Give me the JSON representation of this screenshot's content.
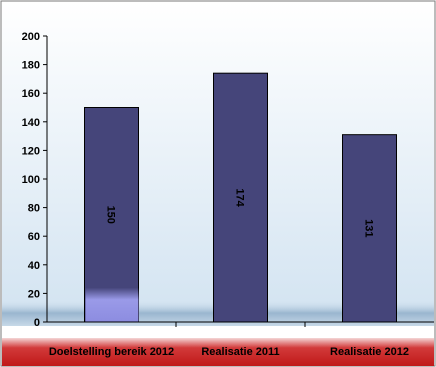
{
  "chart_data": {
    "type": "bar",
    "categories": [
      "Doelstelling bereik 2012",
      "Realisatie 2011",
      "Realisatie 2012"
    ],
    "values": [
      150,
      174,
      131
    ],
    "data_labels": [
      "150",
      "174",
      "131"
    ],
    "ylim": [
      0,
      200
    ],
    "yticks": [
      0,
      20,
      40,
      60,
      80,
      100,
      120,
      140,
      160,
      180,
      200
    ],
    "ytick_labels": [
      "0",
      "20",
      "40",
      "60",
      "80",
      "100",
      "120",
      "140",
      "160",
      "180",
      "200"
    ],
    "grid": false,
    "legend": "none",
    "colors": {
      "bar": "#45457a",
      "bar_highlight": "#9a9ae8",
      "plot_bg_top": "#ffffff",
      "plot_bg_bottom": "#d2e3f1",
      "floor_band": "#a9c3d8",
      "category_band": "#c41e1e"
    }
  }
}
